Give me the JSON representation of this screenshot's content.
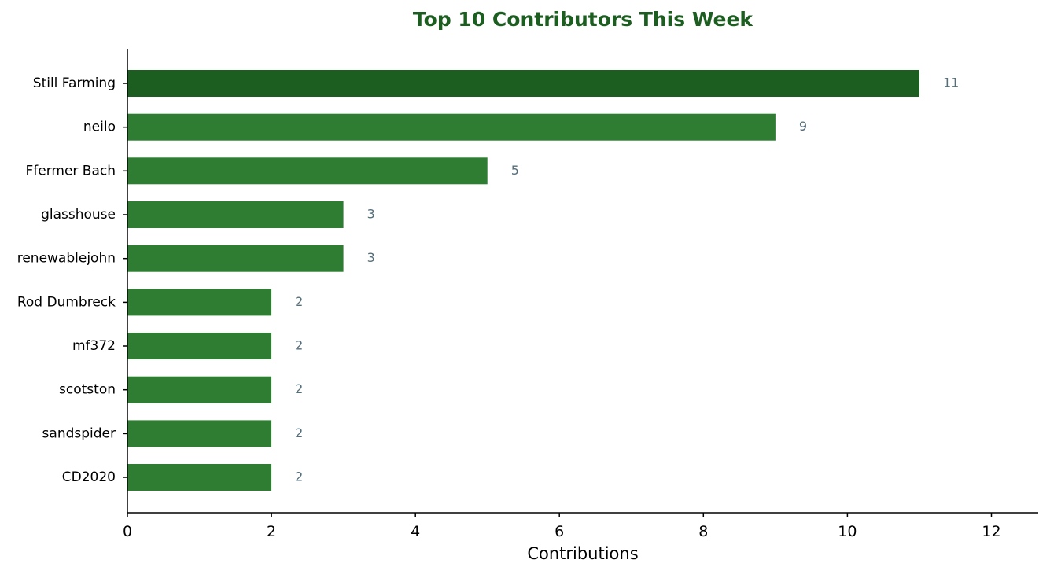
{
  "chart_data": {
    "type": "bar",
    "orientation": "horizontal",
    "title": "Top 10 Contributors This Week",
    "xlabel": "Contributions",
    "ylabel": "",
    "categories": [
      "Still Farming",
      "neilo",
      "Ffermer Bach",
      "glasshouse",
      "renewablejohn",
      "Rod Dumbreck",
      "mf372",
      "scotston",
      "sandspider",
      "CD2020"
    ],
    "values": [
      11,
      9,
      5,
      3,
      3,
      2,
      2,
      2,
      2,
      2
    ],
    "xlim": [
      0,
      12.65
    ],
    "xticks": [
      0,
      2,
      4,
      6,
      8,
      10,
      12
    ],
    "grid": false,
    "legend": "none",
    "data_labels": true,
    "colors": {
      "top_bar": "#1b5e20",
      "bar": "#2e7d32",
      "value_label": "#546e7a",
      "title": "#1b5e20",
      "axis": "#000000"
    }
  }
}
